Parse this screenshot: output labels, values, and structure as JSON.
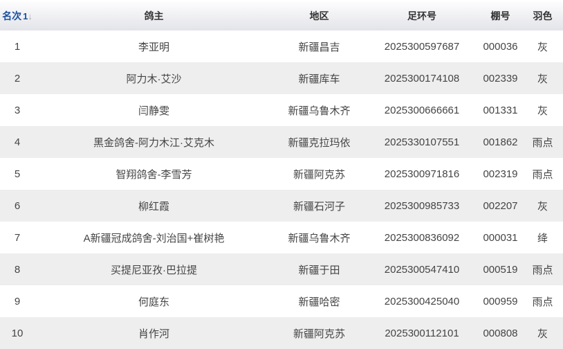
{
  "headers": {
    "rank": "名次",
    "owner": "鸽主",
    "region": "地区",
    "ring": "足环号",
    "shed": "棚号",
    "color": "羽色"
  },
  "sort_icon": "sort-asc-icon",
  "rows": [
    {
      "rank": "1",
      "owner": "李亚明",
      "region": "新疆昌吉",
      "ring": "2025300597687",
      "shed": "000036",
      "color": "灰"
    },
    {
      "rank": "2",
      "owner": "阿力木·艾沙",
      "region": "新疆库车",
      "ring": "2025300174108",
      "shed": "002339",
      "color": "灰"
    },
    {
      "rank": "3",
      "owner": "闫静雯",
      "region": "新疆乌鲁木齐",
      "ring": "2025300666661",
      "shed": "001331",
      "color": "灰"
    },
    {
      "rank": "4",
      "owner": "黑金鸽舍-阿力木江·艾克木",
      "region": "新疆克拉玛依",
      "ring": "2025330107551",
      "shed": "001862",
      "color": "雨点"
    },
    {
      "rank": "5",
      "owner": "智翔鸽舍-李雪芳",
      "region": "新疆阿克苏",
      "ring": "2025300971816",
      "shed": "002319",
      "color": "雨点"
    },
    {
      "rank": "6",
      "owner": "柳红霞",
      "region": "新疆石河子",
      "ring": "2025300985733",
      "shed": "002207",
      "color": "灰"
    },
    {
      "rank": "7",
      "owner": "A新疆冠成鸽舍-刘治国+崔树艳",
      "region": "新疆乌鲁木齐",
      "ring": "2025300836092",
      "shed": "000031",
      "color": "绛"
    },
    {
      "rank": "8",
      "owner": "买提尼亚孜·巴拉提",
      "region": "新疆于田",
      "ring": "2025300547410",
      "shed": "000519",
      "color": "雨点"
    },
    {
      "rank": "9",
      "owner": "何庭东",
      "region": "新疆哈密",
      "ring": "2025300425040",
      "shed": "000959",
      "color": "雨点"
    },
    {
      "rank": "10",
      "owner": "肖作河",
      "region": "新疆阿克苏",
      "ring": "2025300112101",
      "shed": "000808",
      "color": "灰"
    }
  ]
}
